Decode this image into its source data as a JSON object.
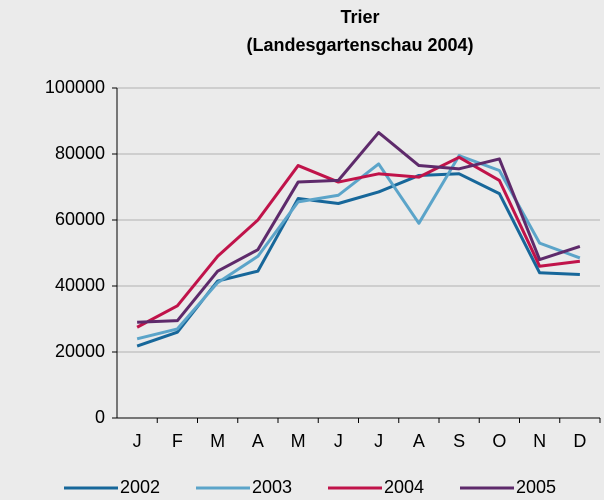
{
  "chart_data": {
    "type": "line",
    "title": "Trier",
    "subtitle": "(Landesgartenschau 2004)",
    "categories": [
      "J",
      "F",
      "M",
      "A",
      "M",
      "J",
      "J",
      "A",
      "S",
      "O",
      "N",
      "D"
    ],
    "series": [
      {
        "name": "2002",
        "color": "#17679a",
        "values": [
          21800,
          26000,
          41500,
          44500,
          66500,
          65000,
          68500,
          73500,
          74000,
          68000,
          44000,
          43500
        ]
      },
      {
        "name": "2003",
        "color": "#5ba4c9",
        "values": [
          24000,
          27000,
          41000,
          49000,
          65500,
          67500,
          77000,
          59000,
          79500,
          75000,
          53000,
          48500
        ]
      },
      {
        "name": "2004",
        "color": "#c0134a",
        "values": [
          27500,
          34000,
          49000,
          60000,
          76500,
          71500,
          74000,
          73000,
          79000,
          72000,
          46000,
          47500
        ]
      },
      {
        "name": "2005",
        "color": "#5e2a6b",
        "values": [
          29000,
          29500,
          44500,
          51000,
          71500,
          72000,
          86500,
          76500,
          75500,
          78500,
          48000,
          52000
        ]
      }
    ],
    "ylim": [
      0,
      100000
    ],
    "yticks": [
      0,
      20000,
      40000,
      60000,
      80000,
      100000
    ],
    "grid": true,
    "legend": "bottom"
  }
}
